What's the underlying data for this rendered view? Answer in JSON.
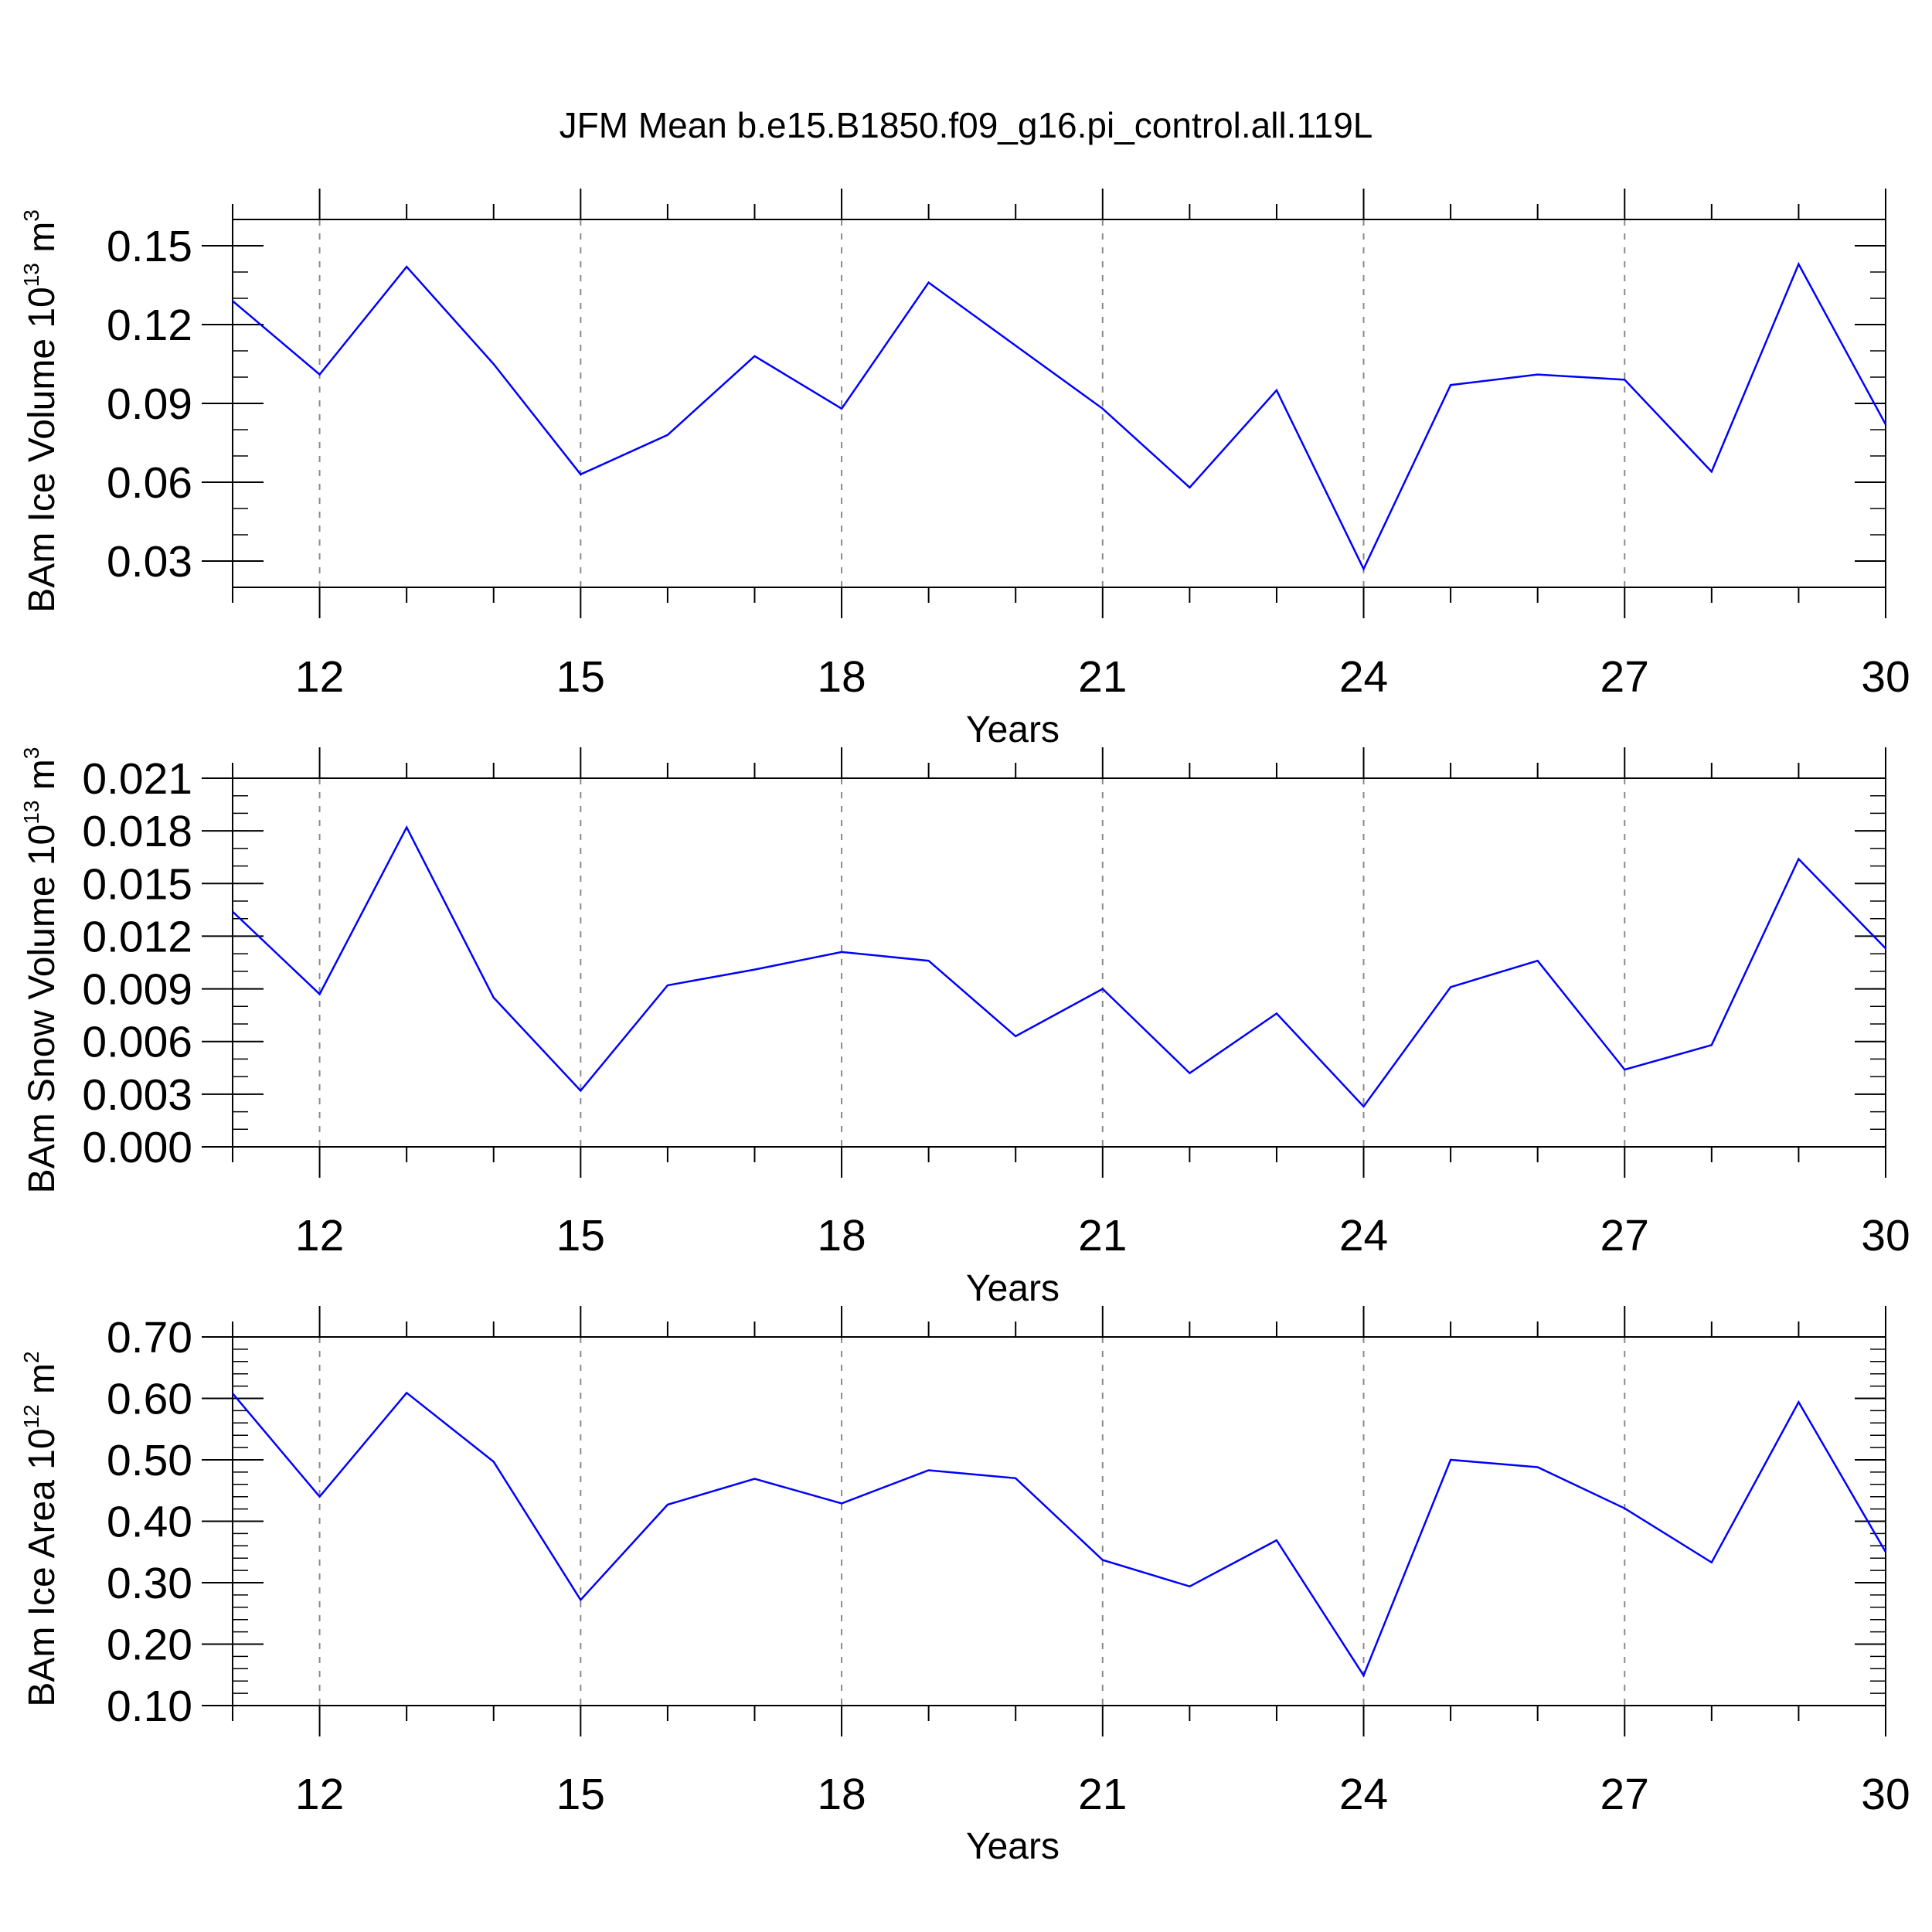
{
  "title": "JFM Mean b.e15.B1850.f09_g16.pi_control.all.119L",
  "colors": {
    "line": "#0000ff",
    "axis": "#000000",
    "grid": "#8a8a8a"
  },
  "chart_data": [
    {
      "type": "line",
      "ylabel": {
        "text": "BAm Ice Volume 10",
        "exp1": "13",
        "mid": " m",
        "exp2": "3"
      },
      "xlabel": "Years",
      "xlim": [
        11,
        30
      ],
      "ylim": [
        0.02,
        0.16
      ],
      "xticks": [
        12,
        15,
        18,
        21,
        24,
        27,
        30
      ],
      "xtick_labels": [
        "12",
        "15",
        "18",
        "21",
        "24",
        "27",
        "30"
      ],
      "yticks": [
        0.03,
        0.06,
        0.09,
        0.12,
        0.15
      ],
      "ytick_labels": [
        "0.03",
        "0.06",
        "0.09",
        "0.12",
        "0.15"
      ],
      "y_minor_step": 0.01,
      "x": [
        11,
        12,
        13,
        14,
        15,
        16,
        17,
        18,
        19,
        20,
        21,
        22,
        23,
        24,
        25,
        26,
        27,
        28,
        29,
        30
      ],
      "values": [
        0.129,
        0.101,
        0.142,
        0.105,
        0.063,
        0.078,
        0.108,
        0.088,
        0.136,
        0.112,
        0.088,
        0.058,
        0.095,
        0.027,
        0.097,
        0.101,
        0.099,
        0.064,
        0.143,
        0.082
      ]
    },
    {
      "type": "line",
      "ylabel": {
        "text": "BAm Snow Volume 10",
        "exp1": "13",
        "mid": " m",
        "exp2": "3"
      },
      "xlabel": "Years",
      "xlim": [
        11,
        30
      ],
      "ylim": [
        0.0,
        0.021
      ],
      "xticks": [
        12,
        15,
        18,
        21,
        24,
        27,
        30
      ],
      "xtick_labels": [
        "12",
        "15",
        "18",
        "21",
        "24",
        "27",
        "30"
      ],
      "yticks": [
        0.0,
        0.003,
        0.006,
        0.009,
        0.012,
        0.015,
        0.018,
        0.021
      ],
      "ytick_labels": [
        "0.000",
        "0.003",
        "0.006",
        "0.009",
        "0.012",
        "0.015",
        "0.018",
        "0.021"
      ],
      "y_minor_step": 0.001,
      "x": [
        11,
        12,
        13,
        14,
        15,
        16,
        17,
        18,
        19,
        20,
        21,
        22,
        23,
        24,
        25,
        26,
        27,
        28,
        29,
        30
      ],
      "values": [
        0.0134,
        0.0087,
        0.0182,
        0.0085,
        0.0032,
        0.0092,
        0.0101,
        0.0111,
        0.0106,
        0.0063,
        0.009,
        0.0042,
        0.0076,
        0.0023,
        0.0091,
        0.0106,
        0.0044,
        0.0058,
        0.0164,
        0.0113
      ]
    },
    {
      "type": "line",
      "ylabel": {
        "text": "BAm Ice Area 10",
        "exp1": "12",
        "mid": " m",
        "exp2": "2"
      },
      "xlabel": "Years",
      "xlim": [
        11,
        30
      ],
      "ylim": [
        0.1,
        0.7
      ],
      "xticks": [
        12,
        15,
        18,
        21,
        24,
        27,
        30
      ],
      "xtick_labels": [
        "12",
        "15",
        "18",
        "21",
        "24",
        "27",
        "30"
      ],
      "yticks": [
        0.1,
        0.2,
        0.3,
        0.4,
        0.5,
        0.6,
        0.7
      ],
      "ytick_labels": [
        "0.10",
        "0.20",
        "0.30",
        "0.40",
        "0.50",
        "0.60",
        "0.70"
      ],
      "y_minor_step": 0.02,
      "x": [
        11,
        12,
        13,
        14,
        15,
        16,
        17,
        18,
        19,
        20,
        21,
        22,
        23,
        24,
        25,
        26,
        27,
        28,
        29,
        30
      ],
      "values": [
        0.608,
        0.44,
        0.609,
        0.497,
        0.272,
        0.427,
        0.469,
        0.429,
        0.483,
        0.47,
        0.337,
        0.294,
        0.369,
        0.149,
        0.5,
        0.488,
        0.421,
        0.333,
        0.594,
        0.35
      ]
    }
  ]
}
